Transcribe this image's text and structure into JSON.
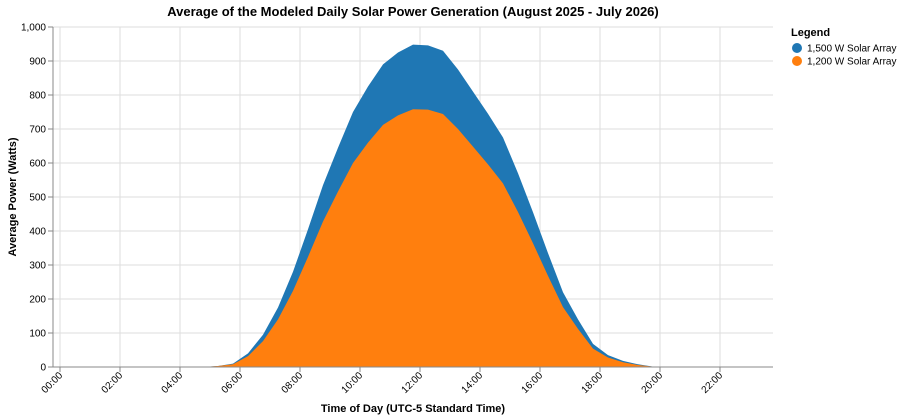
{
  "chart_data": {
    "type": "area",
    "title": "Average of the Modeled Daily Solar Power Generation (August 2025 - July 2026)",
    "xlabel": "Time of Day (UTC-5 Standard Time)",
    "ylabel": "Average Power (Watts)",
    "ylim": [
      0,
      1000
    ],
    "yticks": [
      "0",
      "100",
      "200",
      "300",
      "400",
      "500",
      "600",
      "700",
      "800",
      "900",
      "1,000"
    ],
    "xlim": [
      0,
      24
    ],
    "xticks": [
      "00:00",
      "02:00",
      "04:00",
      "06:00",
      "08:00",
      "10:00",
      "12:00",
      "14:00",
      "16:00",
      "18:00",
      "20:00",
      "22:00"
    ],
    "stacked": false,
    "grid": true,
    "legend": {
      "title": "Legend",
      "position": "top-right"
    },
    "x": [
      0,
      0.5,
      1,
      1.5,
      2,
      2.5,
      3,
      3.5,
      4,
      4.5,
      5,
      5.5,
      6,
      6.5,
      7,
      7.5,
      8,
      8.5,
      9,
      9.5,
      10,
      10.5,
      11,
      11.5,
      12,
      12.5,
      13,
      13.5,
      14,
      14.5,
      15,
      15.5,
      16,
      16.5,
      17,
      17.5,
      18,
      18.5,
      19,
      19.5,
      20,
      20.5,
      21,
      21.5,
      22,
      22.5,
      23
    ],
    "series": [
      {
        "name": "1,500 W Solar Array",
        "color": "#1f77b4",
        "values": [
          0,
          0,
          0,
          0,
          0,
          0,
          0,
          0,
          0,
          0,
          0,
          3,
          10,
          40,
          95,
          175,
          280,
          405,
          535,
          645,
          750,
          825,
          890,
          925,
          948,
          946,
          930,
          875,
          810,
          745,
          675,
          570,
          455,
          335,
          220,
          140,
          68,
          35,
          18,
          8,
          1,
          0,
          0,
          0,
          0,
          0,
          0
        ]
      },
      {
        "name": "1,200 W Solar Array",
        "color": "#ff7f0e",
        "values": [
          0,
          0,
          0,
          0,
          0,
          0,
          0,
          0,
          0,
          0,
          0,
          3,
          8,
          32,
          76,
          140,
          224,
          324,
          428,
          516,
          600,
          660,
          712,
          740,
          758,
          757,
          744,
          700,
          648,
          596,
          540,
          456,
          364,
          268,
          176,
          112,
          54,
          28,
          14,
          6,
          1,
          0,
          0,
          0,
          0,
          0,
          0
        ]
      }
    ]
  }
}
